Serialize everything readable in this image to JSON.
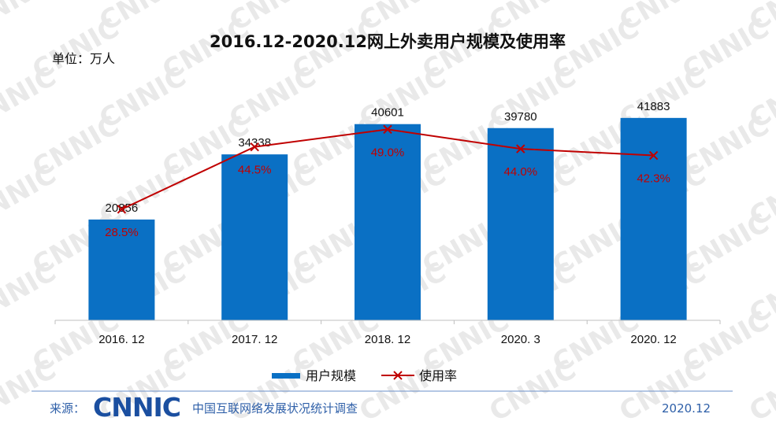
{
  "title": "2016.12-2020.12网上外卖用户规模及使用率",
  "unit_label": "单位：万人",
  "watermark_text": "CNNIC",
  "colors": {
    "bar": "#0a70c4",
    "line": "#c00000",
    "axis": "#bfbfbf",
    "source": "#2e5fa8"
  },
  "chart_data": {
    "type": "bar",
    "categories": [
      "2016. 12",
      "2017. 12",
      "2018. 12",
      "2020. 3",
      "2020. 12"
    ],
    "series": [
      {
        "name": "用户规模",
        "type": "bar",
        "values": [
          20856,
          34338,
          40601,
          39780,
          41883
        ],
        "labels": [
          "20856",
          "34338",
          "40601",
          "39780",
          "41883"
        ]
      },
      {
        "name": "使用率",
        "type": "line",
        "values": [
          28.5,
          44.5,
          49.0,
          44.0,
          42.3
        ],
        "labels": [
          "28.5%",
          "44.5%",
          "49.0%",
          "44.0%",
          "42.3%"
        ]
      }
    ],
    "title": "2016.12-2020.12网上外卖用户规模及使用率",
    "ylabel": "单位：万人",
    "ylim": [
      0,
      50000
    ],
    "ylim_secondary": [
      0,
      62
    ],
    "grid": false,
    "legend_position": "bottom"
  },
  "footer": {
    "source_label": "来源：",
    "logo_text": "CNNIC",
    "organization": "中国互联网络发展状况统计调查",
    "date": "2020.12"
  }
}
